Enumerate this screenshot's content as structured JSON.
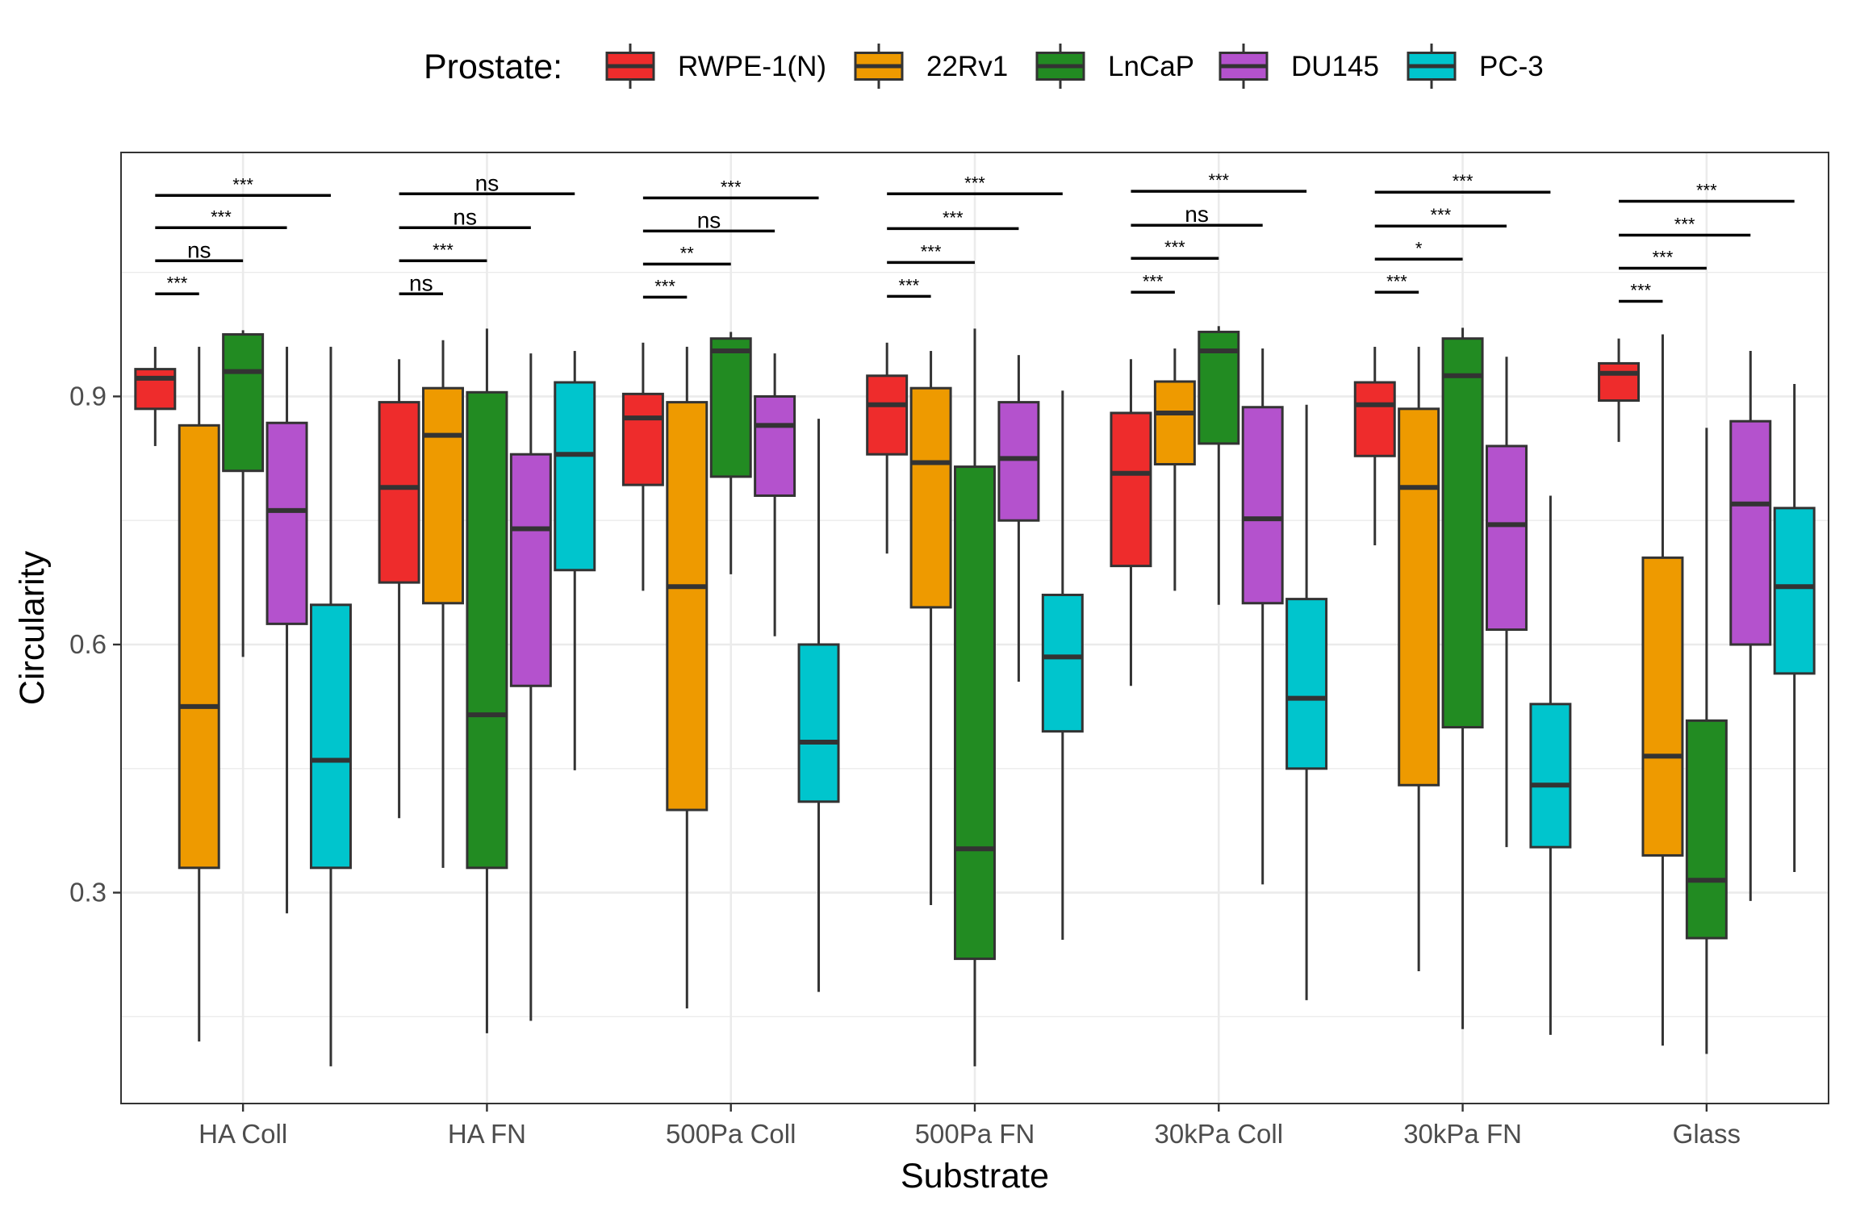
{
  "chart_data": {
    "type": "boxplot",
    "title": "",
    "xlabel": "Substrate",
    "ylabel": "Circularity",
    "ylim": [
      0.045,
      1.195
    ],
    "y_ticks": [
      0.3,
      0.6,
      0.9
    ],
    "y_tick_labels": [
      "0.3",
      "0.6",
      "0.9"
    ],
    "grid": true,
    "legend": {
      "title": "Prostate:",
      "position": "top"
    },
    "categories": [
      "HA Coll",
      "HA FN",
      "500Pa Coll",
      "500Pa FN",
      "30kPa Coll",
      "30kPa FN",
      "Glass"
    ],
    "series": [
      {
        "name": "RWPE-1(N)",
        "color": "#EE2C2C",
        "boxes": [
          {
            "min": 0.84,
            "q1": 0.885,
            "median": 0.922,
            "q3": 0.933,
            "max": 0.96
          },
          {
            "min": 0.39,
            "q1": 0.675,
            "median": 0.79,
            "q3": 0.893,
            "max": 0.945
          },
          {
            "min": 0.665,
            "q1": 0.793,
            "median": 0.874,
            "q3": 0.903,
            "max": 0.965
          },
          {
            "min": 0.71,
            "q1": 0.83,
            "median": 0.89,
            "q3": 0.925,
            "max": 0.965
          },
          {
            "min": 0.55,
            "q1": 0.695,
            "median": 0.807,
            "q3": 0.88,
            "max": 0.945
          },
          {
            "min": 0.72,
            "q1": 0.828,
            "median": 0.89,
            "q3": 0.917,
            "max": 0.96
          },
          {
            "min": 0.845,
            "q1": 0.895,
            "median": 0.928,
            "q3": 0.94,
            "max": 0.97
          }
        ]
      },
      {
        "name": "22Rv1",
        "color": "#EE9A00",
        "boxes": [
          {
            "min": 0.12,
            "q1": 0.33,
            "median": 0.525,
            "q3": 0.865,
            "max": 0.96
          },
          {
            "min": 0.33,
            "q1": 0.65,
            "median": 0.853,
            "q3": 0.91,
            "max": 0.968
          },
          {
            "min": 0.16,
            "q1": 0.4,
            "median": 0.67,
            "q3": 0.893,
            "max": 0.96
          },
          {
            "min": 0.285,
            "q1": 0.645,
            "median": 0.82,
            "q3": 0.91,
            "max": 0.955
          },
          {
            "min": 0.665,
            "q1": 0.818,
            "median": 0.88,
            "q3": 0.918,
            "max": 0.958
          },
          {
            "min": 0.205,
            "q1": 0.43,
            "median": 0.79,
            "q3": 0.885,
            "max": 0.96
          },
          {
            "min": 0.115,
            "q1": 0.345,
            "median": 0.465,
            "q3": 0.705,
            "max": 0.975
          }
        ]
      },
      {
        "name": "LnCaP",
        "color": "#228B22",
        "boxes": [
          {
            "min": 0.585,
            "q1": 0.81,
            "median": 0.93,
            "q3": 0.975,
            "max": 0.98
          },
          {
            "min": 0.13,
            "q1": 0.33,
            "median": 0.515,
            "q3": 0.905,
            "max": 0.982
          },
          {
            "min": 0.685,
            "q1": 0.803,
            "median": 0.955,
            "q3": 0.97,
            "max": 0.978
          },
          {
            "min": 0.09,
            "q1": 0.22,
            "median": 0.353,
            "q3": 0.815,
            "max": 0.982
          },
          {
            "min": 0.648,
            "q1": 0.843,
            "median": 0.955,
            "q3": 0.978,
            "max": 0.985
          },
          {
            "min": 0.135,
            "q1": 0.5,
            "median": 0.925,
            "q3": 0.97,
            "max": 0.983
          },
          {
            "min": 0.105,
            "q1": 0.245,
            "median": 0.315,
            "q3": 0.508,
            "max": 0.862
          }
        ]
      },
      {
        "name": "DU145",
        "color": "#B452CD",
        "boxes": [
          {
            "min": 0.275,
            "q1": 0.625,
            "median": 0.762,
            "q3": 0.868,
            "max": 0.96
          },
          {
            "min": 0.145,
            "q1": 0.55,
            "median": 0.74,
            "q3": 0.83,
            "max": 0.952
          },
          {
            "min": 0.61,
            "q1": 0.78,
            "median": 0.865,
            "q3": 0.9,
            "max": 0.952
          },
          {
            "min": 0.555,
            "q1": 0.75,
            "median": 0.825,
            "q3": 0.893,
            "max": 0.95
          },
          {
            "min": 0.31,
            "q1": 0.65,
            "median": 0.752,
            "q3": 0.887,
            "max": 0.958
          },
          {
            "min": 0.355,
            "q1": 0.618,
            "median": 0.745,
            "q3": 0.84,
            "max": 0.948
          },
          {
            "min": 0.29,
            "q1": 0.6,
            "median": 0.77,
            "q3": 0.87,
            "max": 0.955
          }
        ]
      },
      {
        "name": "PC-3",
        "color": "#00C5CD",
        "boxes": [
          {
            "min": 0.09,
            "q1": 0.33,
            "median": 0.46,
            "q3": 0.648,
            "max": 0.96
          },
          {
            "min": 0.448,
            "q1": 0.69,
            "median": 0.83,
            "q3": 0.917,
            "max": 0.955
          },
          {
            "min": 0.18,
            "q1": 0.41,
            "median": 0.482,
            "q3": 0.6,
            "max": 0.873
          },
          {
            "min": 0.243,
            "q1": 0.495,
            "median": 0.585,
            "q3": 0.66,
            "max": 0.907
          },
          {
            "min": 0.17,
            "q1": 0.45,
            "median": 0.535,
            "q3": 0.655,
            "max": 0.89
          },
          {
            "min": 0.128,
            "q1": 0.355,
            "median": 0.43,
            "q3": 0.528,
            "max": 0.78
          },
          {
            "min": 0.325,
            "q1": 0.565,
            "median": 0.67,
            "q3": 0.765,
            "max": 0.915
          }
        ]
      }
    ],
    "significance": [
      {
        "category": "HA Coll",
        "labels": [
          "***",
          "ns",
          "***",
          "***"
        ],
        "y": [
          1.024,
          1.064,
          1.104,
          1.143
        ]
      },
      {
        "category": "HA FN",
        "labels": [
          "ns",
          "***",
          "ns",
          "ns"
        ],
        "y": [
          1.024,
          1.064,
          1.104,
          1.145
        ]
      },
      {
        "category": "500Pa Coll",
        "labels": [
          "***",
          "**",
          "ns",
          "***"
        ],
        "y": [
          1.02,
          1.06,
          1.1,
          1.14
        ]
      },
      {
        "category": "500Pa FN",
        "labels": [
          "***",
          "***",
          "***",
          "***"
        ],
        "y": [
          1.021,
          1.062,
          1.103,
          1.145
        ]
      },
      {
        "category": "30kPa Coll",
        "labels": [
          "***",
          "***",
          "ns",
          "***"
        ],
        "y": [
          1.026,
          1.067,
          1.107,
          1.148
        ]
      },
      {
        "category": "30kPa FN",
        "labels": [
          "***",
          "*",
          "***",
          "***"
        ],
        "y": [
          1.026,
          1.066,
          1.106,
          1.147
        ]
      },
      {
        "category": "Glass",
        "labels": [
          "***",
          "***",
          "***",
          "***"
        ],
        "y": [
          1.015,
          1.055,
          1.095,
          1.136
        ]
      }
    ]
  }
}
